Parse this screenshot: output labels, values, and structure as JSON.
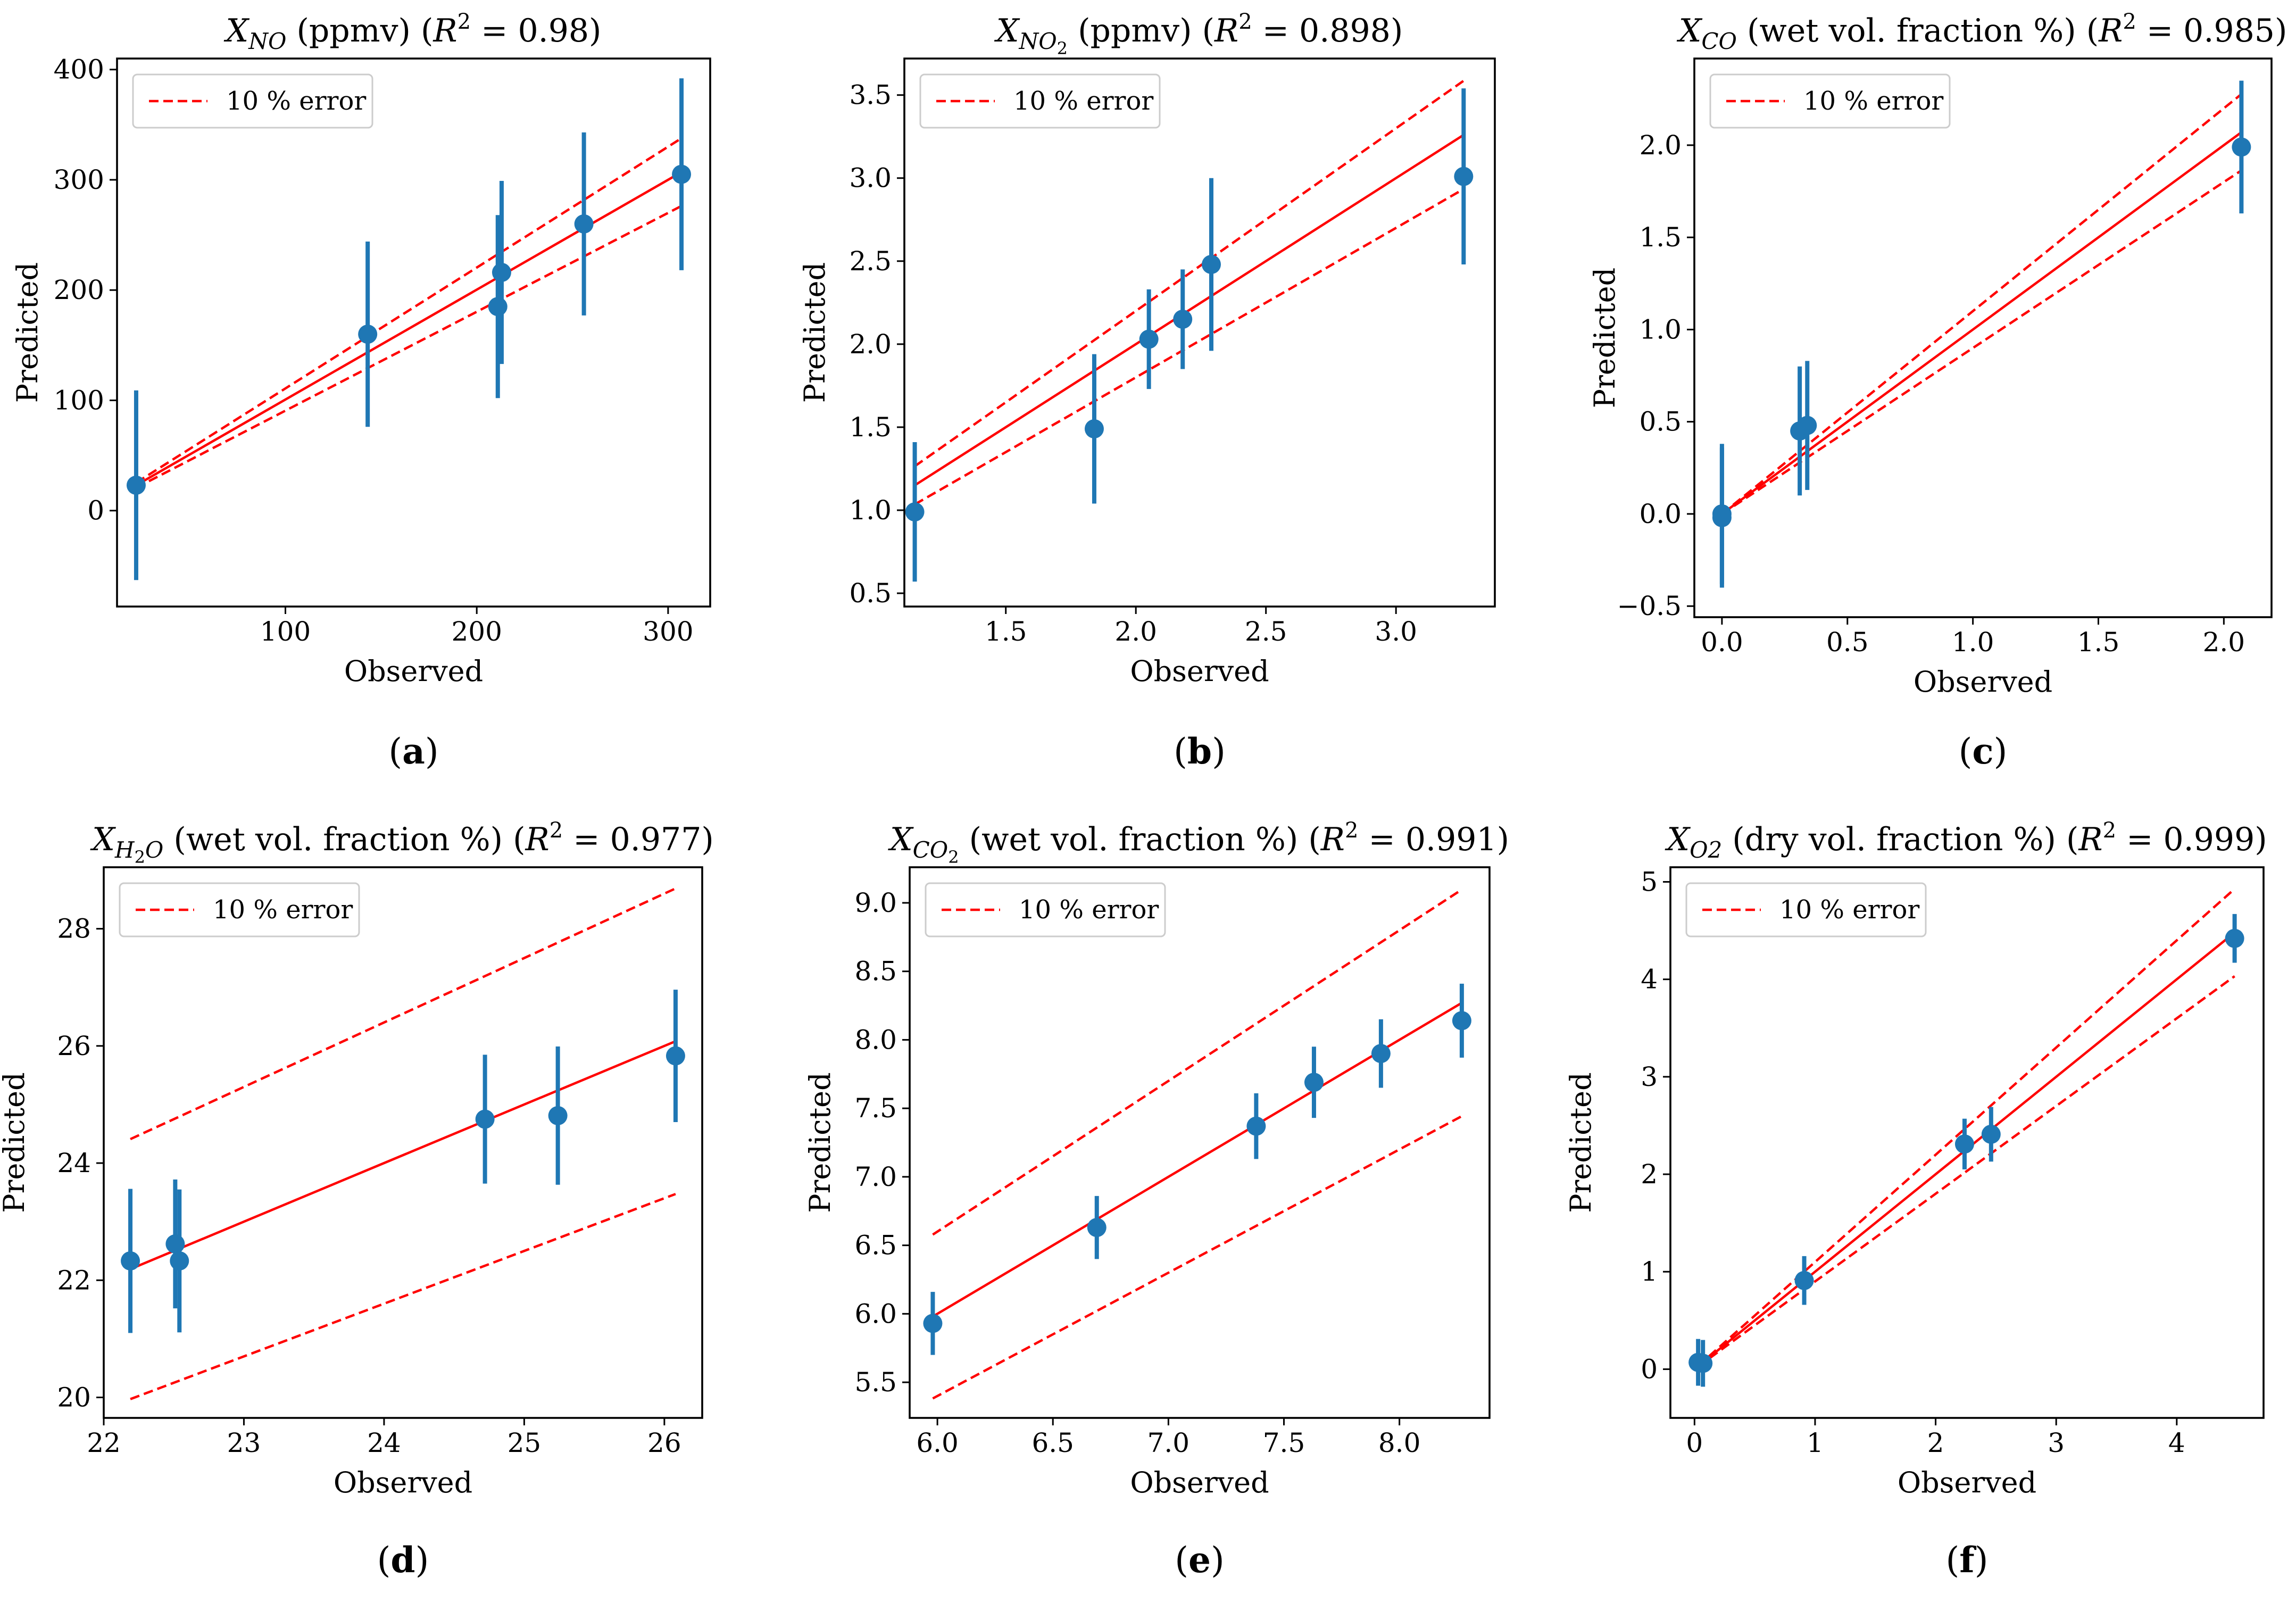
{
  "legend_label": "10 % error",
  "chart_data": [
    {
      "panel": "(a)",
      "type": "scatter",
      "title": {
        "var": "X",
        "sub": "NO",
        "unit": " (ppmv) (",
        "r2": "R",
        "sup": "2",
        "val": " = 0.98)"
      },
      "xlabel": "Observed",
      "ylabel": "Predicted",
      "xlim": [
        12,
        322
      ],
      "ylim": [
        -87,
        410
      ],
      "xticks": [
        100,
        200,
        300
      ],
      "xticklabels": [
        "100",
        "200",
        "300"
      ],
      "yticks": [
        0,
        100,
        200,
        300,
        400
      ],
      "yticklabels": [
        "0",
        "100",
        "200",
        "300",
        "400"
      ],
      "x": [
        22,
        143,
        211,
        213,
        256,
        307
      ],
      "y": [
        23,
        160,
        185,
        216,
        260,
        305
      ],
      "err": [
        86,
        84,
        83,
        83,
        83,
        87
      ],
      "fit": [
        [
          22,
          23
        ],
        [
          307,
          307
        ]
      ],
      "error_pct": 10,
      "legend_loc": "upper left"
    },
    {
      "panel": "(b)",
      "type": "scatter",
      "title": {
        "var": "X",
        "sub": "NO",
        "sub2": "2",
        "unit": " (ppmv) (",
        "r2": "R",
        "sup": "2",
        "val": " = 0.898)"
      },
      "xlabel": "Observed",
      "ylabel": "Predicted",
      "xlim": [
        1.11,
        3.38
      ],
      "ylim": [
        0.42,
        3.72
      ],
      "xticks": [
        1.5,
        2.0,
        2.5,
        3.0
      ],
      "xticklabels": [
        "1.5",
        "2.0",
        "2.5",
        "3.0"
      ],
      "yticks": [
        0.5,
        1.0,
        1.5,
        2.0,
        2.5,
        3.0,
        3.5
      ],
      "yticklabels": [
        "0.5",
        "1.0",
        "1.5",
        "2.0",
        "2.5",
        "3.0",
        "3.5"
      ],
      "x": [
        1.15,
        1.84,
        2.05,
        2.18,
        2.29,
        3.26
      ],
      "y": [
        0.99,
        1.49,
        2.03,
        2.15,
        2.48,
        3.01
      ],
      "err": [
        0.42,
        0.45,
        0.3,
        0.3,
        0.52,
        0.53
      ],
      "fit": [
        [
          1.15,
          1.15
        ],
        [
          3.26,
          3.26
        ]
      ],
      "error_pct": 10,
      "legend_loc": "upper left"
    },
    {
      "panel": "(c)",
      "type": "scatter",
      "title": {
        "var": "X",
        "sub": "CO",
        "unit": " (wet vol. fraction %) (",
        "r2": "R",
        "sup": "2",
        "val": " = 0.985)"
      },
      "xlabel": "Observed",
      "ylabel": "Predicted",
      "xlim": [
        -0.11,
        2.19
      ],
      "ylim": [
        -0.56,
        2.47
      ],
      "xticks": [
        0.0,
        0.5,
        1.0,
        1.5,
        2.0
      ],
      "xticklabels": [
        "0.0",
        "0.5",
        "1.0",
        "1.5",
        "2.0"
      ],
      "yticks": [
        -0.5,
        0.0,
        0.5,
        1.0,
        1.5,
        2.0
      ],
      "yticklabels": [
        "−0.5",
        "0.0",
        "0.5",
        "1.0",
        "1.5",
        "2.0"
      ],
      "x": [
        0.0,
        0.0,
        0.31,
        0.34,
        2.07
      ],
      "y": [
        0.0,
        -0.02,
        0.45,
        0.48,
        1.99
      ],
      "err": [
        0.38,
        0.38,
        0.35,
        0.35,
        0.36
      ],
      "fit": [
        [
          0.0,
          0.0
        ],
        [
          2.07,
          2.07
        ]
      ],
      "error_pct": 10,
      "legend_loc": "upper left"
    },
    {
      "panel": "(d)",
      "type": "scatter",
      "title": {
        "var": "X",
        "sub": "H",
        "sub2": "2",
        "sub3": "O",
        "unit": " (wet vol. fraction %) (",
        "r2": "R",
        "sup": "2",
        "val": " = 0.977)"
      },
      "xlabel": "Observed",
      "ylabel": "Predicted",
      "xlim": [
        22.0,
        26.27
      ],
      "ylim": [
        19.65,
        29.05
      ],
      "xticks": [
        22,
        23,
        24,
        25,
        26
      ],
      "xticklabels": [
        "22",
        "23",
        "24",
        "25",
        "26"
      ],
      "yticks": [
        20,
        22,
        24,
        26,
        28
      ],
      "yticklabels": [
        "20",
        "22",
        "24",
        "26",
        "28"
      ],
      "x": [
        22.19,
        22.51,
        22.54,
        24.72,
        25.24,
        26.08
      ],
      "y": [
        22.33,
        22.62,
        22.33,
        24.75,
        24.81,
        25.83
      ],
      "err": [
        1.23,
        1.1,
        1.22,
        1.1,
        1.18,
        1.13
      ],
      "fit": [
        [
          22.19,
          22.19
        ],
        [
          26.08,
          26.08
        ]
      ],
      "error_pct": 10,
      "legend_loc": "upper left"
    },
    {
      "panel": "(e)",
      "type": "scatter",
      "title": {
        "var": "X",
        "sub": "CO",
        "sub2": "2",
        "unit": " (wet vol. fraction %) (",
        "r2": "R",
        "sup": "2",
        "val": " = 0.991)"
      },
      "xlabel": "Observed",
      "ylabel": "Predicted",
      "xlim": [
        5.88,
        8.39
      ],
      "ylim": [
        5.24,
        9.26
      ],
      "xticks": [
        6.0,
        6.5,
        7.0,
        7.5,
        8.0
      ],
      "xticklabels": [
        "6.0",
        "6.5",
        "7.0",
        "7.5",
        "8.0"
      ],
      "yticks": [
        5.5,
        6.0,
        6.5,
        7.0,
        7.5,
        8.0,
        8.5,
        9.0
      ],
      "yticklabels": [
        "5.5",
        "6.0",
        "6.5",
        "7.0",
        "7.5",
        "8.0",
        "8.5",
        "9.0"
      ],
      "x": [
        5.98,
        6.69,
        7.38,
        7.63,
        7.92,
        8.27
      ],
      "y": [
        5.93,
        6.63,
        7.37,
        7.69,
        7.9,
        8.14
      ],
      "err": [
        0.23,
        0.23,
        0.24,
        0.26,
        0.25,
        0.27
      ],
      "fit": [
        [
          5.98,
          5.98
        ],
        [
          8.27,
          8.27
        ]
      ],
      "error_pct": 10,
      "legend_loc": "upper left"
    },
    {
      "panel": "(f)",
      "type": "scatter",
      "title": {
        "var": "X",
        "sub": "O2",
        "unit": " (dry vol. fraction %) (",
        "r2": "R",
        "sup": "2",
        "val": " = 0.999)"
      },
      "xlabel": "Observed",
      "ylabel": "Predicted",
      "xlim": [
        -0.2,
        4.72
      ],
      "ylim": [
        -0.5,
        5.15
      ],
      "xticks": [
        0,
        1,
        2,
        3,
        4
      ],
      "xticklabels": [
        "0",
        "1",
        "2",
        "3",
        "4"
      ],
      "yticks": [
        0,
        1,
        2,
        3,
        4,
        5
      ],
      "yticklabels": [
        "0",
        "1",
        "2",
        "3",
        "4",
        "5"
      ],
      "x": [
        0.03,
        0.07,
        0.91,
        2.24,
        2.46,
        4.48
      ],
      "y": [
        0.07,
        0.06,
        0.91,
        2.31,
        2.41,
        4.42
      ],
      "err": [
        0.24,
        0.24,
        0.25,
        0.26,
        0.28,
        0.25
      ],
      "fit": [
        [
          0.03,
          0.03
        ],
        [
          4.48,
          4.48
        ]
      ],
      "error_pct": 10,
      "legend_loc": "upper left"
    }
  ]
}
